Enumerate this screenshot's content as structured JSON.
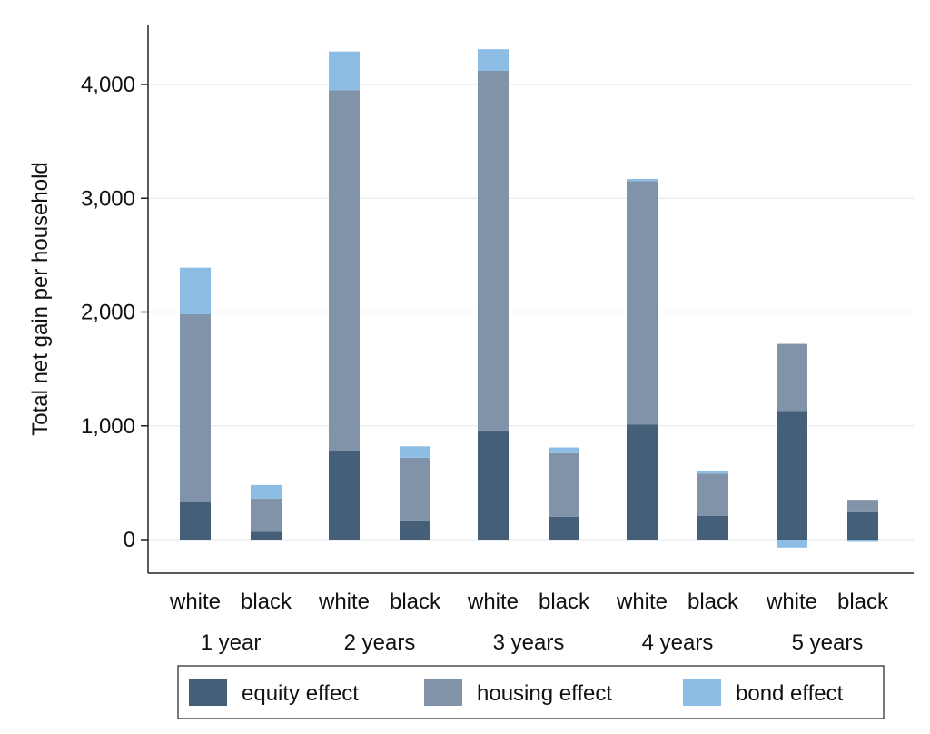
{
  "chart_data": {
    "type": "bar",
    "stacked": true,
    "ylabel": "Total net gain per household",
    "ylim": [
      -300,
      4550
    ],
    "yticks": [
      0,
      1000,
      2000,
      3000,
      4000
    ],
    "ytick_labels": [
      "0",
      "1,000",
      "2,000",
      "3,000",
      "4,000"
    ],
    "grid": true,
    "legend_position": "bottom",
    "groups": [
      {
        "label": "1 year",
        "bars": [
          {
            "label": "white",
            "equity": 330,
            "housing": 1650,
            "bond": 410
          },
          {
            "label": "black",
            "equity": 70,
            "housing": 290,
            "bond": 120
          }
        ]
      },
      {
        "label": "2 years",
        "bars": [
          {
            "label": "white",
            "equity": 780,
            "housing": 3170,
            "bond": 340
          },
          {
            "label": "black",
            "equity": 170,
            "housing": 550,
            "bond": 100
          }
        ]
      },
      {
        "label": "3 years",
        "bars": [
          {
            "label": "white",
            "equity": 960,
            "housing": 3160,
            "bond": 190
          },
          {
            "label": "black",
            "equity": 200,
            "housing": 560,
            "bond": 50
          }
        ]
      },
      {
        "label": "4 years",
        "bars": [
          {
            "label": "white",
            "equity": 1010,
            "housing": 2140,
            "bond": 20
          },
          {
            "label": "black",
            "equity": 210,
            "housing": 370,
            "bond": 20
          }
        ]
      },
      {
        "label": "5 years",
        "bars": [
          {
            "label": "white",
            "equity": 1130,
            "housing": 590,
            "bond": -70
          },
          {
            "label": "black",
            "equity": 240,
            "housing": 110,
            "bond": -20
          }
        ]
      }
    ],
    "series": [
      {
        "key": "equity",
        "name": "equity effect",
        "color": "#465f78"
      },
      {
        "key": "housing",
        "name": "housing effect",
        "color": "#8093a8"
      },
      {
        "key": "bond",
        "name": "bond effect",
        "color": "#8dbde4"
      }
    ]
  }
}
